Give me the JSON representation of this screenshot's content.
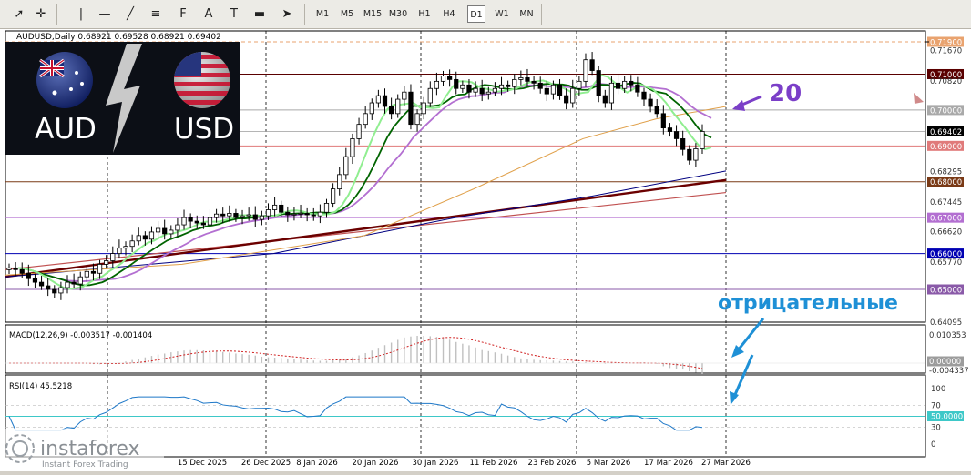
{
  "toolbar": {
    "tools": [
      {
        "name": "cursor-icon",
        "glyph": "➚"
      },
      {
        "name": "crosshair-icon",
        "glyph": "✛"
      },
      {
        "name": "vertical-line-icon",
        "glyph": "|"
      },
      {
        "name": "horizontal-line-icon",
        "glyph": "—"
      },
      {
        "name": "trendline-icon",
        "glyph": "╱"
      },
      {
        "name": "equidistant-channel-icon",
        "glyph": "≡"
      },
      {
        "name": "fibonacci-icon",
        "glyph": "F"
      },
      {
        "name": "text-icon",
        "glyph": "A"
      },
      {
        "name": "text-label-icon",
        "glyph": "T"
      },
      {
        "name": "rectangle-icon",
        "glyph": "▬"
      },
      {
        "name": "arrows-icon",
        "glyph": "➤"
      }
    ],
    "timeframes": [
      "M1",
      "M5",
      "M15",
      "M30",
      "H1",
      "H4",
      "D1",
      "W1",
      "MN"
    ],
    "active_timeframe": "D1"
  },
  "chart": {
    "header": "AUDUSD,Daily  0.68921 0.69528 0.68921 0.69402",
    "price_labels": [
      {
        "value": "0.71900",
        "bg": "#e9a36f",
        "fg": "#ffffff",
        "price": 0.719
      },
      {
        "value": "0.71670",
        "bg": "",
        "fg": "#333333",
        "price": 0.7167
      },
      {
        "value": "0.71000",
        "bg": "#5a0000",
        "fg": "#ffffff",
        "price": 0.71
      },
      {
        "value": "0.70820",
        "bg": "",
        "fg": "#333333",
        "price": 0.7082
      },
      {
        "value": "0.70000",
        "bg": "#a9a9a9",
        "fg": "#ffffff",
        "price": 0.7
      },
      {
        "value": "0.69402",
        "bg": "#000000",
        "fg": "#ffffff",
        "price": 0.69402
      },
      {
        "value": "0.69000",
        "bg": "#e07a7a",
        "fg": "#ffffff",
        "price": 0.69
      },
      {
        "value": "0.68295",
        "bg": "",
        "fg": "#333333",
        "price": 0.68295
      },
      {
        "value": "0.68000",
        "bg": "#7a3a16",
        "fg": "#ffffff",
        "price": 0.68
      },
      {
        "value": "0.67445",
        "bg": "",
        "fg": "#333333",
        "price": 0.67445
      },
      {
        "value": "0.67000",
        "bg": "#b36fd1",
        "fg": "#ffffff",
        "price": 0.67
      },
      {
        "value": "0.66620",
        "bg": "",
        "fg": "#333333",
        "price": 0.6662
      },
      {
        "value": "0.66000",
        "bg": "#0000b3",
        "fg": "#ffffff",
        "price": 0.66
      },
      {
        "value": "0.65770",
        "bg": "",
        "fg": "#333333",
        "price": 0.6577
      },
      {
        "value": "0.65000",
        "bg": "#8a5aa8",
        "fg": "#ffffff",
        "price": 0.65
      },
      {
        "value": "0.64095",
        "bg": "",
        "fg": "#333333",
        "price": 0.64095
      }
    ],
    "date_labels": [
      "15 Dec 2025",
      "26 Dec 2025",
      "8 Jan 2026",
      "20 Jan 2026",
      "30 Jan 2026",
      "11 Feb 2026",
      "23 Feb 2026",
      "5 Mar 2026",
      "17 Mar 2026",
      "27 Mar 2026"
    ],
    "annotation_20": "20",
    "annotation_negative": "отрицательные"
  },
  "logo": {
    "left": "AUD",
    "right": "USD"
  },
  "macd": {
    "header": "MACD(12,26,9) -0.003517 -0.001404",
    "labels": [
      "0.010353",
      "0.00000",
      "-0.004337"
    ]
  },
  "rsi": {
    "header": "RSI(14) 45.5218",
    "labels": [
      "100",
      "70",
      "50.0000",
      "30",
      "0"
    ]
  },
  "brand": {
    "name": "instaforex",
    "tagline": "Instant Forex Trading"
  },
  "colors": {
    "candle_bull": "#ffffff",
    "candle_bear": "#000000",
    "ma_light_green": "#90ee90",
    "ma_dark_green": "#006400",
    "ma_purple": "#b36fd1",
    "ma_orange": "#e0a04a",
    "ma_navy": "#000080",
    "ma_maroon": "#6b0000",
    "ma_red": "#c05050",
    "annotation_purple": "#7b3fc8",
    "annotation_blue": "#1e90d6"
  }
}
